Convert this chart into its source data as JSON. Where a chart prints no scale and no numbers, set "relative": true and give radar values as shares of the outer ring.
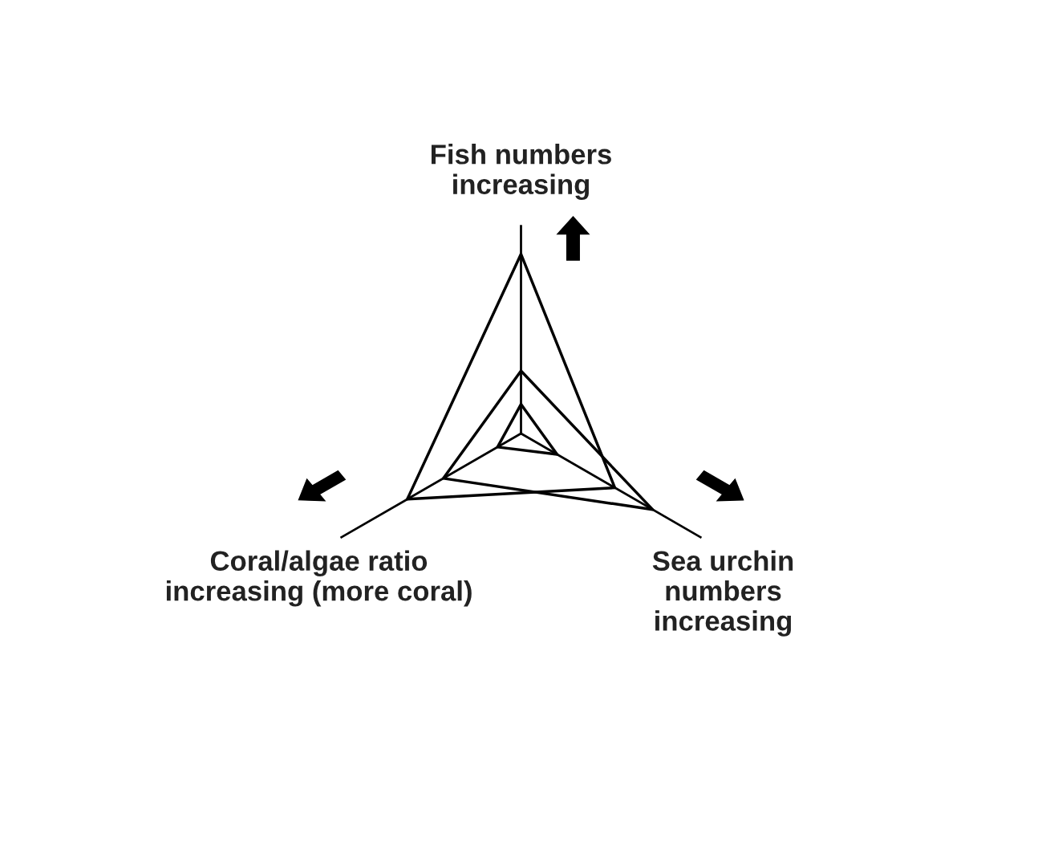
{
  "chart_data": {
    "type": "radar",
    "relative": true,
    "categories": [
      "Fish numbers\nincreasing",
      "Sea urchin\nnumbers\nincreasing",
      "Coral/algae ratio\nincreasing (more coral)"
    ],
    "series": [
      {
        "color": "#000000",
        "values": [
          0.86,
          0.52,
          0.63
        ]
      },
      {
        "color": "#000000",
        "values": [
          0.3,
          0.73,
          0.43
        ]
      },
      {
        "color": "#000000",
        "values": [
          0.14,
          0.2,
          0.13
        ]
      }
    ],
    "grid": false,
    "marker": "none",
    "line_style": "solid"
  }
}
